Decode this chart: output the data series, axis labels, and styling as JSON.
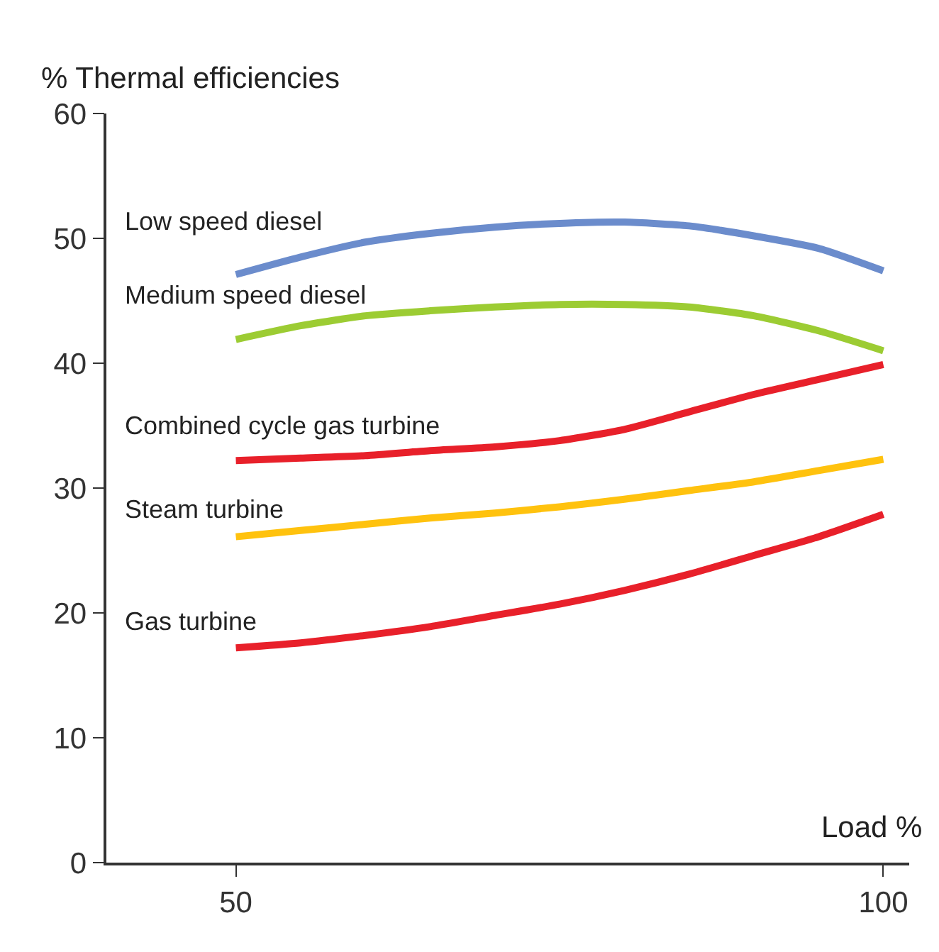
{
  "chart_data": {
    "type": "line",
    "ylabel": "% Thermal efficiencies",
    "xlabel": "Load %",
    "x": [
      50,
      55,
      60,
      65,
      70,
      75,
      80,
      85,
      90,
      95,
      100
    ],
    "series": [
      {
        "name": "Low speed diesel",
        "color": "#6b8ccc",
        "values": [
          47.1,
          48.5,
          49.7,
          50.4,
          50.9,
          51.2,
          51.3,
          51.0,
          50.2,
          49.2,
          47.4
        ]
      },
      {
        "name": "Medium speed diesel",
        "color": "#9ccc33",
        "values": [
          41.9,
          43.0,
          43.8,
          44.2,
          44.5,
          44.7,
          44.7,
          44.5,
          43.8,
          42.6,
          41.0
        ]
      },
      {
        "name": "Combined cycle gas turbine",
        "color": "#e8202a",
        "values": [
          32.2,
          32.4,
          32.6,
          33.0,
          33.3,
          33.8,
          34.7,
          36.1,
          37.5,
          38.7,
          39.9
        ]
      },
      {
        "name": "Steam turbine",
        "color": "#ffc20e",
        "values": [
          26.1,
          26.6,
          27.1,
          27.6,
          28.0,
          28.5,
          29.1,
          29.8,
          30.5,
          31.4,
          32.3
        ]
      },
      {
        "name": "Gas turbine",
        "color": "#e8202a",
        "values": [
          17.2,
          17.6,
          18.2,
          18.9,
          19.8,
          20.7,
          21.8,
          23.1,
          24.6,
          26.1,
          27.9
        ]
      }
    ],
    "xlim": [
      40,
      102
    ],
    "ylim": [
      0,
      60
    ],
    "xticks": [
      50,
      100
    ],
    "yticks": [
      0,
      10,
      20,
      30,
      40,
      50,
      60
    ],
    "grid": false,
    "legend": false,
    "marker": "none",
    "line_style": "solid"
  }
}
